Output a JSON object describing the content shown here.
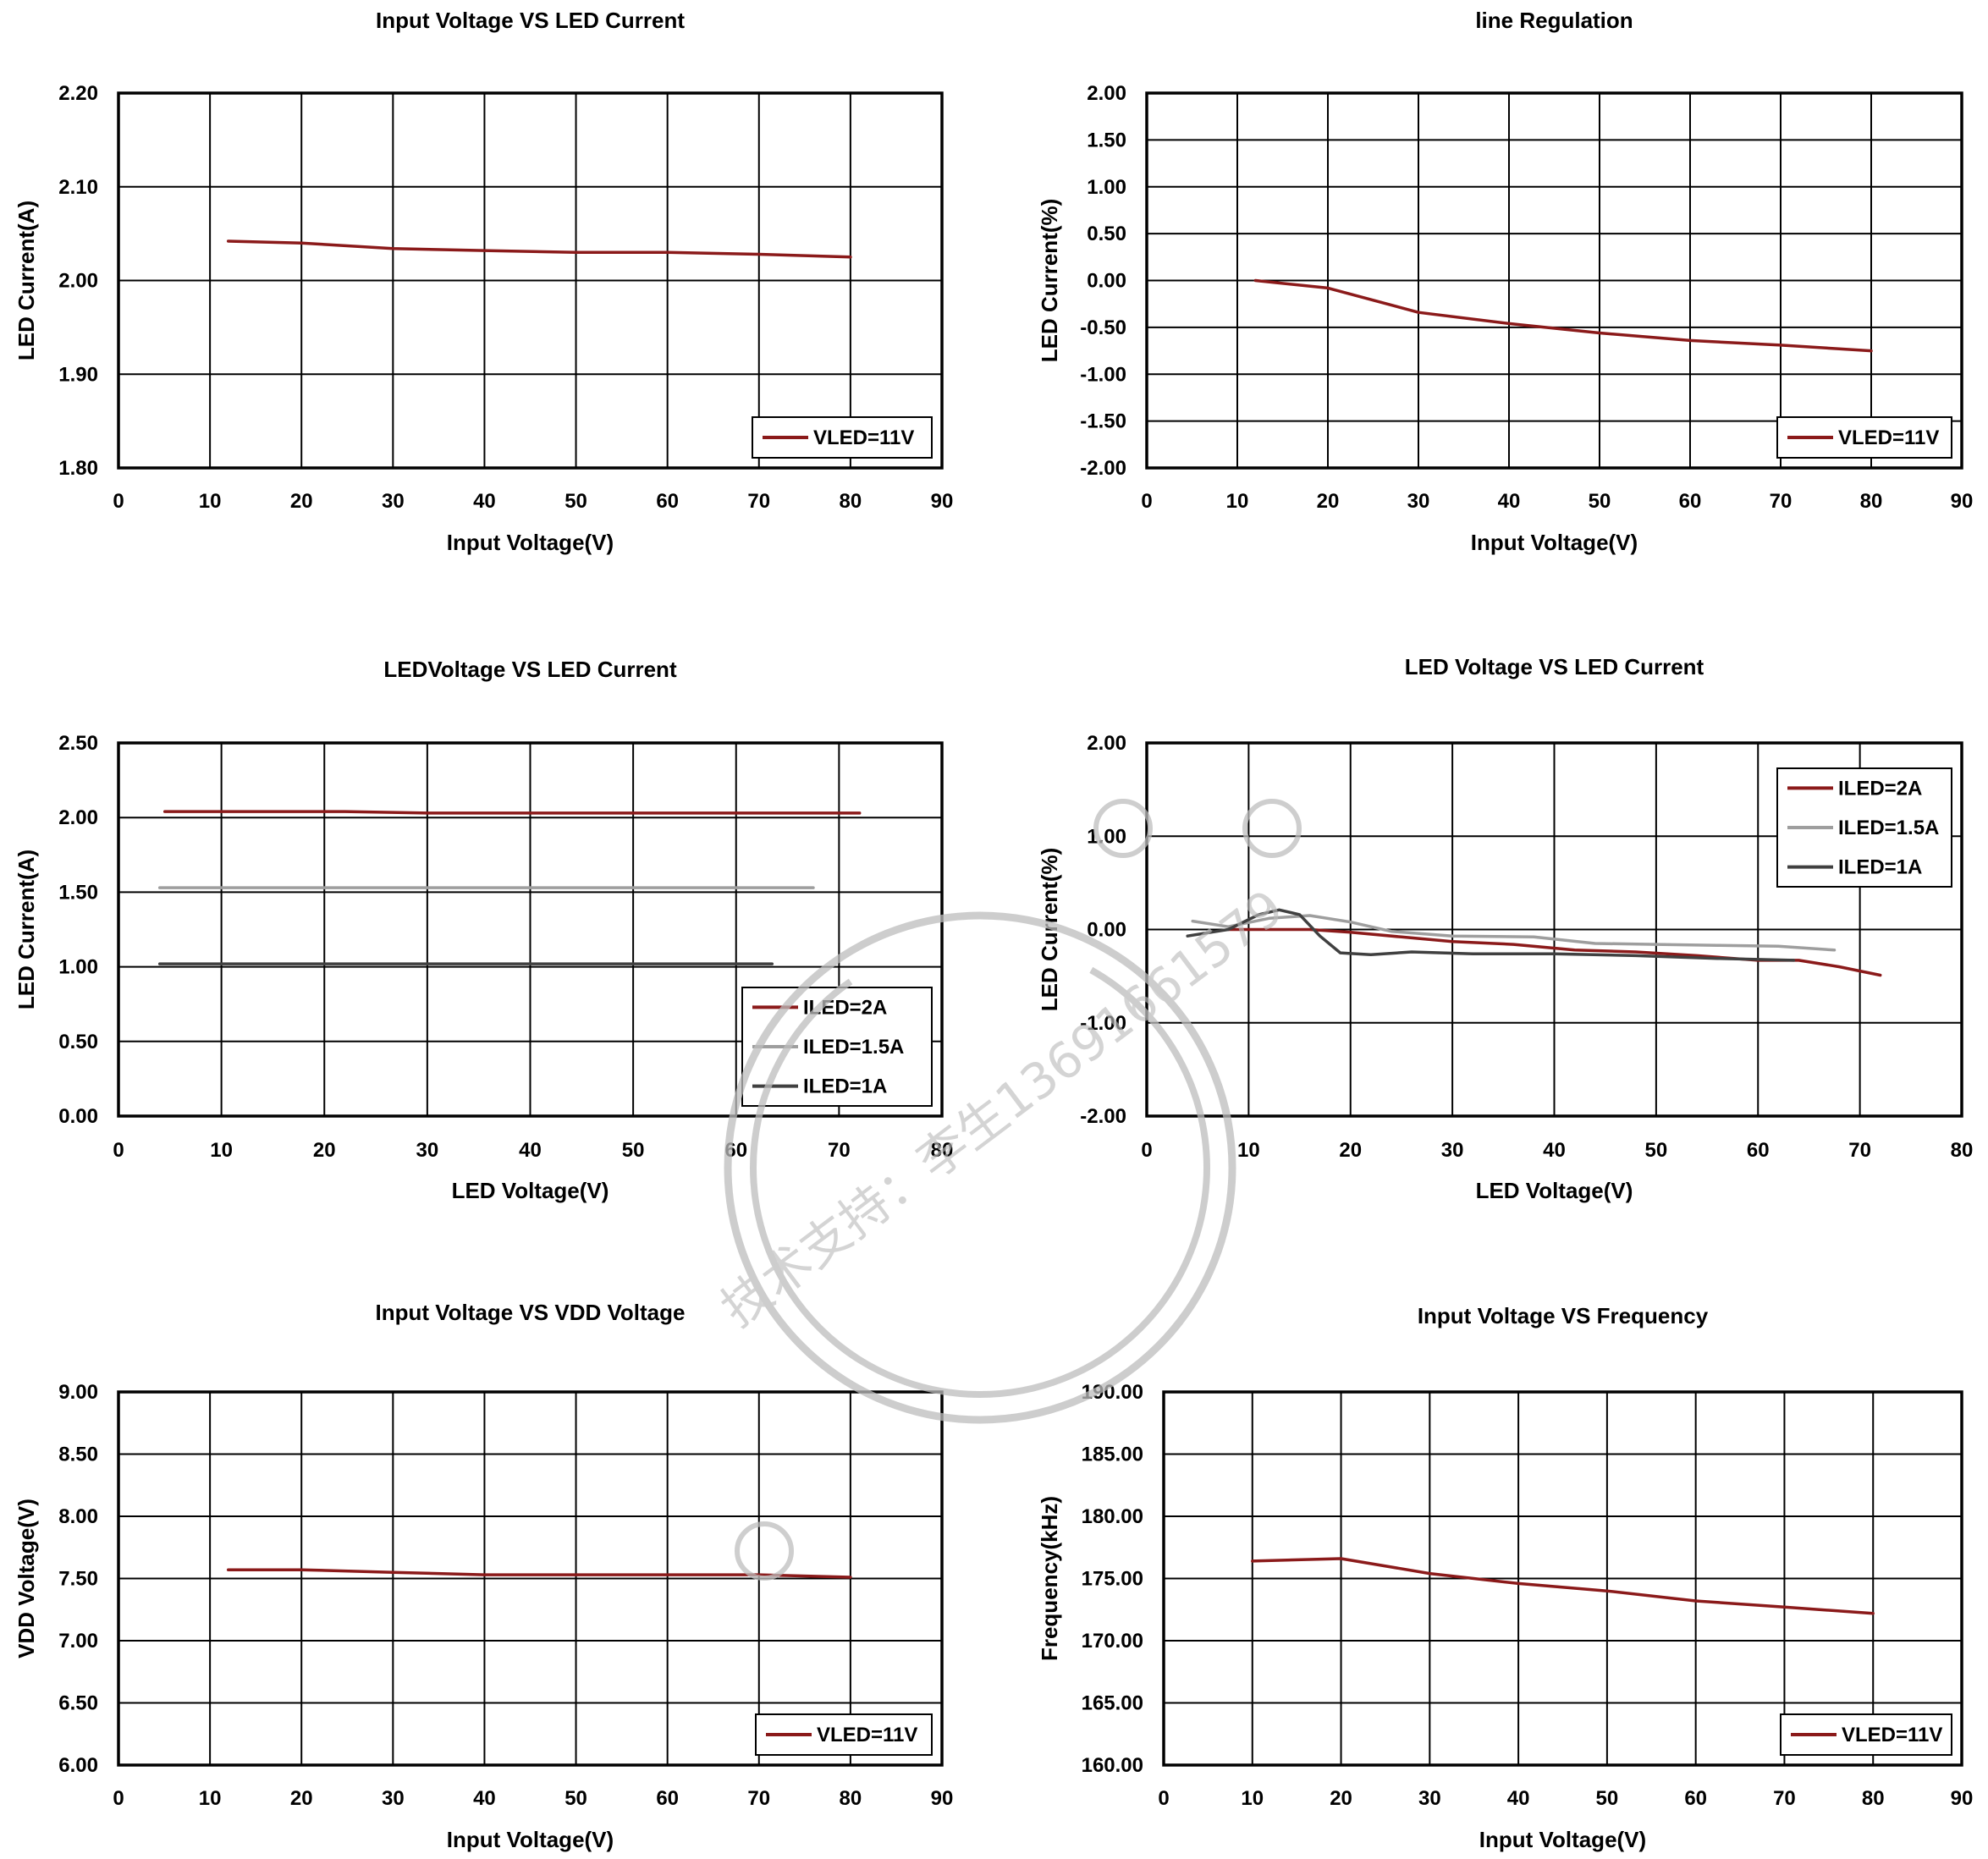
{
  "chart_data": [
    {
      "type": "line",
      "title": "Input Voltage VS LED Current",
      "xlabel": "Input Voltage(V)",
      "ylabel": "LED Current(A)",
      "xlim": [
        0,
        90
      ],
      "ylim": [
        1.8,
        2.2
      ],
      "xticks": [
        "0",
        "10",
        "20",
        "30",
        "40",
        "50",
        "60",
        "70",
        "80",
        "90"
      ],
      "yticks": [
        "1.80",
        "1.90",
        "2.00",
        "2.10",
        "2.20"
      ],
      "grid": true,
      "legend_position": "bottom-right",
      "x": [
        12,
        20,
        30,
        40,
        50,
        60,
        70,
        80
      ],
      "series": [
        {
          "name": "VLED=11V",
          "color": "#8b1a1a",
          "values": [
            2.042,
            2.04,
            2.034,
            2.032,
            2.03,
            2.03,
            2.028,
            2.025
          ]
        }
      ]
    },
    {
      "type": "line",
      "title": "line Regulation",
      "xlabel": "Input Voltage(V)",
      "ylabel": "LED Current(%)",
      "xlim": [
        0,
        90
      ],
      "ylim": [
        -2.0,
        2.0
      ],
      "xticks": [
        "0",
        "10",
        "20",
        "30",
        "40",
        "50",
        "60",
        "70",
        "80",
        "90"
      ],
      "yticks": [
        "-2.00",
        "-1.50",
        "-1.00",
        "-0.50",
        "0.00",
        "0.50",
        "1.00",
        "1.50",
        "2.00"
      ],
      "grid": true,
      "legend_position": "bottom-right",
      "x": [
        12,
        20,
        30,
        40,
        50,
        60,
        70,
        80
      ],
      "series": [
        {
          "name": "VLED=11V",
          "color": "#8b1a1a",
          "values": [
            0.0,
            -0.08,
            -0.34,
            -0.46,
            -0.56,
            -0.64,
            -0.69,
            -0.75
          ]
        }
      ]
    },
    {
      "type": "line",
      "title": "LEDVoltage VS LED Current",
      "xlabel": "LED Voltage(V)",
      "ylabel": "LED Current(A)",
      "xlim": [
        0,
        80
      ],
      "ylim": [
        0,
        2.5
      ],
      "xticks": [
        "0",
        "10",
        "20",
        "30",
        "40",
        "50",
        "60",
        "70",
        "80"
      ],
      "yticks": [
        "0.00",
        "0.50",
        "1.00",
        "1.50",
        "2.00",
        "2.50"
      ],
      "grid": true,
      "legend_position": "bottom-right",
      "series": [
        {
          "name": "ILED=2A",
          "color": "#8b1a1a",
          "x": [
            4.5,
            22,
            30,
            72
          ],
          "values": [
            2.04,
            2.04,
            2.03,
            2.03
          ]
        },
        {
          "name": "ILED=1.5A",
          "color": "#9e9e9e",
          "x": [
            4,
            67.5
          ],
          "values": [
            1.53,
            1.53
          ]
        },
        {
          "name": "ILED=1A",
          "color": "#404040",
          "x": [
            4,
            63.5
          ],
          "values": [
            1.02,
            1.02
          ]
        }
      ]
    },
    {
      "type": "line",
      "title": "LED Voltage VS LED Current",
      "xlabel": "LED Voltage(V)",
      "ylabel": "LED Current(%)",
      "xlim": [
        0,
        80
      ],
      "ylim": [
        -2.0,
        2.0
      ],
      "xticks": [
        "0",
        "10",
        "20",
        "30",
        "40",
        "50",
        "60",
        "70",
        "80"
      ],
      "yticks": [
        "-2.00",
        "-1.00",
        "0.00",
        "1.00",
        "2.00"
      ],
      "grid": true,
      "legend_position": "top-right",
      "series": [
        {
          "name": "ILED=2A",
          "color": "#8b1a1a",
          "x": [
            8,
            12,
            16,
            20,
            25,
            30,
            36,
            42,
            48,
            54,
            60,
            64,
            68,
            72
          ],
          "values": [
            0.0,
            0.0,
            0.0,
            -0.03,
            -0.08,
            -0.13,
            -0.16,
            -0.22,
            -0.24,
            -0.28,
            -0.33,
            -0.33,
            -0.4,
            -0.49
          ]
        },
        {
          "name": "ILED=1.5A",
          "color": "#9e9e9e",
          "x": [
            4.5,
            8,
            12,
            16,
            20,
            24,
            30,
            38,
            44,
            50,
            56,
            62,
            67.5
          ],
          "values": [
            0.09,
            0.03,
            0.12,
            0.15,
            0.08,
            -0.02,
            -0.07,
            -0.08,
            -0.15,
            -0.16,
            -0.17,
            -0.18,
            -0.22
          ]
        },
        {
          "name": "ILED=1A",
          "color": "#404040",
          "x": [
            4,
            8,
            11,
            13,
            15,
            17,
            19,
            22,
            26,
            32,
            40,
            48,
            56,
            63.5
          ],
          "values": [
            -0.07,
            0.0,
            0.16,
            0.21,
            0.16,
            -0.07,
            -0.25,
            -0.27,
            -0.24,
            -0.26,
            -0.26,
            -0.28,
            -0.31,
            -0.33
          ]
        }
      ]
    },
    {
      "type": "line",
      "title": "Input Voltage VS VDD Voltage",
      "xlabel": "Input Voltage(V)",
      "ylabel": "VDD Voltage(V)",
      "xlim": [
        0,
        90
      ],
      "ylim": [
        6.0,
        9.0
      ],
      "xticks": [
        "0",
        "10",
        "20",
        "30",
        "40",
        "50",
        "60",
        "70",
        "80",
        "90"
      ],
      "yticks": [
        "6.00",
        "6.50",
        "7.00",
        "7.50",
        "8.00",
        "8.50",
        "9.00"
      ],
      "grid": true,
      "legend_position": "bottom-right",
      "x": [
        12,
        20,
        30,
        40,
        50,
        60,
        70,
        80
      ],
      "series": [
        {
          "name": "VLED=11V",
          "color": "#8b1a1a",
          "values": [
            7.57,
            7.57,
            7.55,
            7.53,
            7.53,
            7.53,
            7.53,
            7.51
          ]
        }
      ]
    },
    {
      "type": "line",
      "title": "Input Voltage VS Frequency",
      "xlabel": "Input Voltage(V)",
      "ylabel": "Frequency(kHz)",
      "xlim": [
        0,
        90
      ],
      "ylim": [
        160,
        190
      ],
      "xticks": [
        "0",
        "10",
        "20",
        "30",
        "40",
        "50",
        "60",
        "70",
        "80",
        "90"
      ],
      "yticks": [
        "160.00",
        "165.00",
        "170.00",
        "175.00",
        "180.00",
        "185.00",
        "190.00"
      ],
      "grid": true,
      "legend_position": "bottom-right",
      "x": [
        10,
        20,
        30,
        40,
        50,
        60,
        70,
        80
      ],
      "series": [
        {
          "name": "VLED=11V",
          "color": "#8b1a1a",
          "values": [
            176.4,
            176.6,
            175.4,
            174.6,
            174.0,
            173.2,
            172.7,
            172.2
          ]
        }
      ]
    }
  ],
  "watermark": {
    "text": "技术支持：李生13691661579",
    "color": "#bdbdbd"
  }
}
